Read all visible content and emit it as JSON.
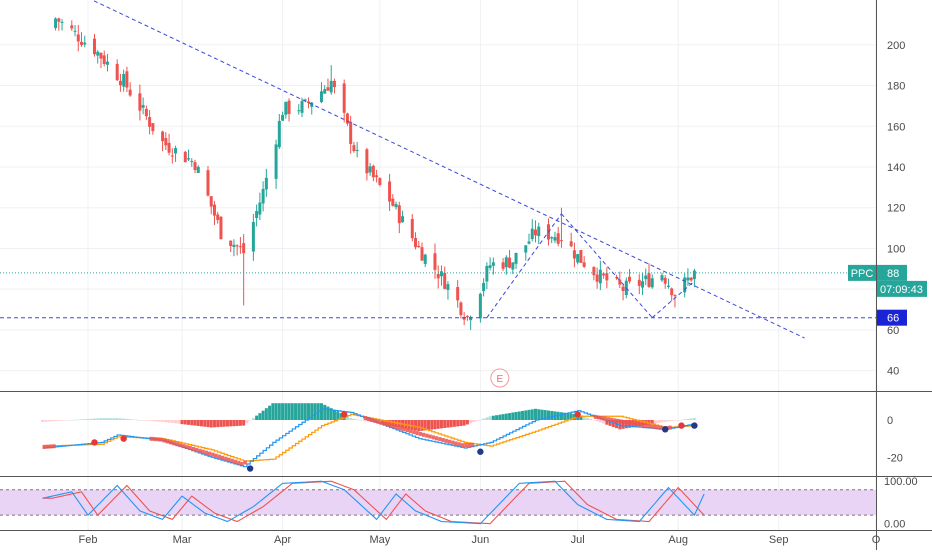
{
  "chart_data": [
    {
      "type": "candlestick",
      "symbol_label": "PPC",
      "last_price_label": "88",
      "countdown_label": "07:09:43",
      "support_level_label": "66",
      "last_price": 88,
      "support_level": 66,
      "earnings_marker_label": "E",
      "ylim": [
        30,
        222
      ],
      "y_ticks": [
        40,
        60,
        80,
        100,
        120,
        140,
        160,
        180,
        200
      ],
      "x_tick_labels": [
        "Feb",
        "Mar",
        "Apr",
        "May",
        "Jun",
        "Jul",
        "Aug",
        "Sep",
        "O"
      ],
      "candles_anchor_ohlc": [
        [
          "2020-01-22",
          208,
          222,
          203,
          213
        ],
        [
          "2020-02-03",
          208,
          212,
          192,
          198
        ],
        [
          "2020-02-12",
          190,
          195,
          178,
          182
        ],
        [
          "2020-02-24",
          165,
          168,
          148,
          152
        ],
        [
          "2020-03-05",
          150,
          155,
          138,
          142
        ],
        [
          "2020-03-13",
          118,
          130,
          98,
          108
        ],
        [
          "2020-03-20",
          92,
          110,
          73,
          98
        ],
        [
          "2020-03-26",
          108,
          132,
          105,
          128
        ],
        [
          "2020-04-01",
          142,
          172,
          138,
          168
        ],
        [
          "2020-04-08",
          158,
          174,
          150,
          170
        ],
        [
          "2020-04-16",
          176,
          190,
          166,
          182
        ],
        [
          "2020-04-24",
          160,
          166,
          140,
          145
        ],
        [
          "2020-05-04",
          135,
          146,
          118,
          124
        ],
        [
          "2020-05-13",
          115,
          120,
          96,
          100
        ],
        [
          "2020-05-21",
          92,
          98,
          80,
          84
        ],
        [
          "2020-05-28",
          72,
          78,
          62,
          66
        ],
        [
          "2020-06-04",
          78,
          96,
          76,
          92
        ],
        [
          "2020-06-11",
          98,
          106,
          90,
          94
        ],
        [
          "2020-06-18",
          100,
          112,
          96,
          108
        ],
        [
          "2020-06-26",
          112,
          120,
          102,
          106
        ],
        [
          "2020-07-01",
          104,
          108,
          92,
          96
        ],
        [
          "2020-07-08",
          92,
          96,
          82,
          86
        ],
        [
          "2020-07-15",
          84,
          88,
          76,
          80
        ],
        [
          "2020-07-22",
          80,
          86,
          76,
          84
        ],
        [
          "2020-07-27",
          90,
          96,
          86,
          88
        ],
        [
          "2020-07-31",
          84,
          88,
          72,
          78
        ],
        [
          "2020-08-06",
          84,
          90,
          80,
          88
        ]
      ],
      "trendlines": [
        {
          "from": [
            "2020-01-28",
            226
          ],
          "to": [
            "2020-09-09",
            56
          ]
        },
        {
          "from": [
            "2020-06-03",
            66
          ],
          "to": [
            "2020-06-26",
            117
          ]
        },
        {
          "from": [
            "2020-06-26",
            117
          ],
          "to": [
            "2020-07-24",
            66
          ]
        },
        {
          "from": [
            "2020-07-24",
            66
          ],
          "to": [
            "2020-08-06",
            84
          ]
        }
      ]
    },
    {
      "type": "macd",
      "ylim": [
        -30,
        15
      ],
      "y_ticks": [
        0,
        -20
      ],
      "anchors": [
        [
          "2020-01-18",
          -15,
          -14
        ],
        [
          "2020-02-05",
          -12,
          -13
        ],
        [
          "2020-02-10",
          -8,
          -9
        ],
        [
          "2020-02-24",
          -11,
          -10
        ],
        [
          "2020-03-10",
          -20,
          -16
        ],
        [
          "2020-03-20",
          -25,
          -22
        ],
        [
          "2020-03-29",
          -12,
          -21
        ],
        [
          "2020-04-13",
          6,
          -3
        ],
        [
          "2020-04-22",
          4,
          3
        ],
        [
          "2020-05-13",
          -10,
          -4
        ],
        [
          "2020-05-27",
          -15,
          -12
        ],
        [
          "2020-06-04",
          -12,
          -14
        ],
        [
          "2020-06-18",
          0,
          -6
        ],
        [
          "2020-07-01",
          5,
          2
        ],
        [
          "2020-07-14",
          -3,
          2
        ],
        [
          "2020-07-28",
          -5,
          -4
        ],
        [
          "2020-08-06",
          -2,
          -3
        ]
      ],
      "cross_markers": [
        [
          "2020-02-03",
          -12,
          "down"
        ],
        [
          "2020-02-12",
          -10,
          "down"
        ],
        [
          "2020-03-22",
          -26,
          "up"
        ],
        [
          "2020-04-20",
          3,
          "down"
        ],
        [
          "2020-06-01",
          -17,
          "up"
        ],
        [
          "2020-07-01",
          3,
          "down"
        ],
        [
          "2020-07-28",
          -5,
          "up"
        ],
        [
          "2020-08-02",
          -3,
          "down"
        ],
        [
          "2020-08-06",
          -3,
          "up"
        ]
      ]
    },
    {
      "type": "stochastic_rsi",
      "ylim": [
        -15,
        110
      ],
      "y_ticks": [
        100,
        0
      ],
      "y_tick_labels": [
        "100.00",
        "0.00"
      ],
      "upper_band": 80,
      "lower_band": 20,
      "anchors_k": [
        [
          "2020-01-18",
          60
        ],
        [
          "2020-01-27",
          75
        ],
        [
          "2020-02-01",
          20
        ],
        [
          "2020-02-10",
          90
        ],
        [
          "2020-02-17",
          30
        ],
        [
          "2020-02-24",
          10
        ],
        [
          "2020-03-01",
          65
        ],
        [
          "2020-03-08",
          25
        ],
        [
          "2020-03-15",
          5
        ],
        [
          "2020-03-23",
          40
        ],
        [
          "2020-04-01",
          95
        ],
        [
          "2020-04-13",
          100
        ],
        [
          "2020-04-20",
          80
        ],
        [
          "2020-04-30",
          10
        ],
        [
          "2020-05-06",
          70
        ],
        [
          "2020-05-12",
          30
        ],
        [
          "2020-05-20",
          5
        ],
        [
          "2020-06-01",
          0
        ],
        [
          "2020-06-13",
          95
        ],
        [
          "2020-06-24",
          100
        ],
        [
          "2020-07-01",
          45
        ],
        [
          "2020-07-10",
          10
        ],
        [
          "2020-07-20",
          5
        ],
        [
          "2020-07-29",
          85
        ],
        [
          "2020-08-06",
          20
        ],
        [
          "2020-08-09",
          70
        ]
      ]
    }
  ]
}
